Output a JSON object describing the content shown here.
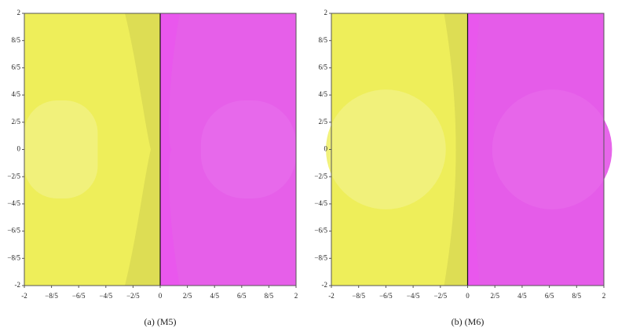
{
  "chart_data": [
    {
      "type": "basin",
      "title": "(a) (M5)",
      "colors": [
        "#eeee5a",
        "#e455e8"
      ],
      "xlim": [
        -2,
        2
      ],
      "ylim": [
        -2,
        2
      ],
      "xticks": [
        -2,
        {
          "value": -1.6,
          "label": "−8/5"
        },
        {
          "value": -1.2,
          "label": "−6/5"
        },
        {
          "value": -0.8,
          "label": "−4/5"
        },
        {
          "value": -0.4,
          "label": "−2/5"
        },
        0,
        {
          "value": 0.4,
          "label": "2/5"
        },
        {
          "value": 0.8,
          "label": "4/5"
        },
        {
          "value": 1.2,
          "label": "6/5"
        },
        {
          "value": 1.6,
          "label": "8/5"
        },
        2
      ],
      "yticks": [
        -2,
        {
          "value": -1.6,
          "label": "−8/5"
        },
        {
          "value": -1.2,
          "label": "−6/5"
        },
        {
          "value": -0.8,
          "label": "−4/5"
        },
        {
          "value": -0.4,
          "label": "−2/5"
        },
        0,
        {
          "value": 0.4,
          "label": "2/5"
        },
        {
          "value": 0.8,
          "label": "4/5"
        },
        {
          "value": 1.2,
          "label": "6/5"
        },
        {
          "value": 1.6,
          "label": "8/5"
        },
        2
      ]
    },
    {
      "type": "basin",
      "title": "(b) (M6)",
      "colors": [
        "#eeee5a",
        "#e455e8"
      ],
      "xlim": [
        -2,
        2
      ],
      "ylim": [
        -2,
        2
      ],
      "xticks": [
        -2,
        {
          "value": -1.6,
          "label": "−8/5"
        },
        {
          "value": -1.2,
          "label": "−6/5"
        },
        {
          "value": -0.8,
          "label": "−4/5"
        },
        {
          "value": -0.4,
          "label": "−2/5"
        },
        0,
        {
          "value": 0.4,
          "label": "2/5"
        },
        {
          "value": 0.8,
          "label": "4/5"
        },
        {
          "value": 1.2,
          "label": "6/5"
        },
        {
          "value": 1.6,
          "label": "8/5"
        },
        2
      ],
      "yticks": [
        -2,
        {
          "value": -1.6,
          "label": "−8/5"
        },
        {
          "value": -1.2,
          "label": "−6/5"
        },
        {
          "value": -0.8,
          "label": "−4/5"
        },
        {
          "value": -0.4,
          "label": "−2/5"
        },
        0,
        {
          "value": 0.4,
          "label": "2/5"
        },
        {
          "value": 0.8,
          "label": "4/5"
        },
        {
          "value": 1.2,
          "label": "6/5"
        },
        {
          "value": 1.6,
          "label": "8/5"
        },
        2
      ]
    }
  ]
}
